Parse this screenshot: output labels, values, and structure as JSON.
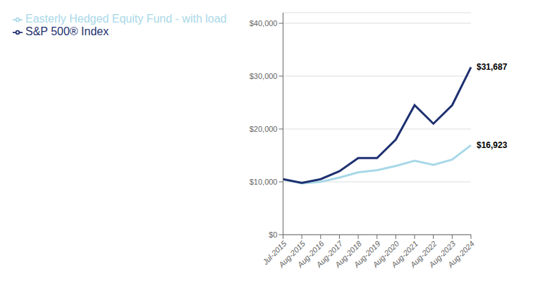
{
  "chart_data": {
    "type": "line",
    "categories": [
      "Jul-2015",
      "Aug-2015",
      "Aug-2016",
      "Aug-2017",
      "Aug-2018",
      "Aug-2019",
      "Aug-2020",
      "Aug-2021",
      "Aug-2022",
      "Aug-2023",
      "Aug-2024"
    ],
    "series": [
      {
        "name": "Easterly Hedged Equity Fund - with load",
        "color": "#a8d8e8",
        "values": [
          10500,
          9700,
          10000,
          10800,
          11800,
          12200,
          13000,
          14000,
          13200,
          14200,
          16923
        ],
        "value_labels": [
          null,
          null,
          null,
          null,
          null,
          null,
          null,
          null,
          null,
          null,
          "$16,923"
        ]
      },
      {
        "name": "S&P 500® Index",
        "color": "#1e3070",
        "values": [
          10500,
          9800,
          10500,
          12000,
          14500,
          14500,
          18000,
          24500,
          21000,
          24500,
          31687
        ],
        "value_labels": [
          null,
          null,
          null,
          null,
          null,
          null,
          null,
          null,
          null,
          null,
          "$31,687"
        ]
      }
    ],
    "ylim": [
      0,
      42000
    ],
    "yticks": [
      {
        "value": 0,
        "label": "$0"
      },
      {
        "value": 10000,
        "label": "$10,000"
      },
      {
        "value": 20000,
        "label": "$20,000"
      },
      {
        "value": 30000,
        "label": "$30,000"
      },
      {
        "value": 40000,
        "label": "$40,000"
      }
    ],
    "grid": true,
    "legend": "top left"
  }
}
